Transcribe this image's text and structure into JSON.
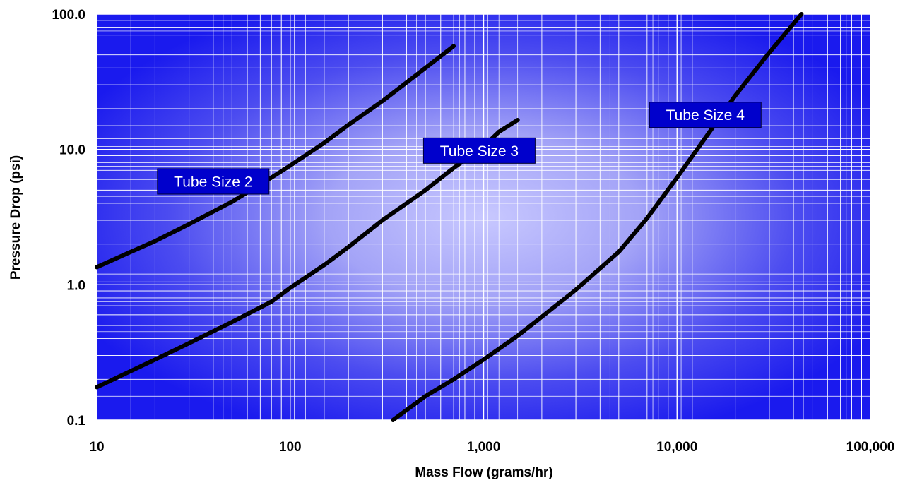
{
  "chart_data": {
    "type": "line",
    "xlabel": "Mass Flow (grams/hr)",
    "ylabel": "Pressure Drop (psi)",
    "x_scale": "log",
    "y_scale": "log",
    "xlim": [
      10,
      100000
    ],
    "ylim": [
      0.1,
      100
    ],
    "x_ticks": [
      {
        "value": 10,
        "label": "10"
      },
      {
        "value": 100,
        "label": "100"
      },
      {
        "value": 1000,
        "label": "1,000"
      },
      {
        "value": 10000,
        "label": "10,000"
      },
      {
        "value": 100000,
        "label": "100,000"
      }
    ],
    "y_ticks": [
      {
        "value": 0.1,
        "label": "0.1"
      },
      {
        "value": 1,
        "label": "1.0"
      },
      {
        "value": 10,
        "label": "10.0"
      },
      {
        "value": 100,
        "label": "100.0"
      }
    ],
    "grid": true,
    "colors": {
      "plot_center": "#c8c8ff",
      "plot_edge": "#1a1aee",
      "grid": "#ffffff",
      "series": "#000000",
      "label_bg": "#0000cc",
      "label_text": "#ffffff"
    },
    "series": [
      {
        "name": "Tube Size 2",
        "x": [
          10,
          15,
          20,
          30,
          50,
          80,
          100,
          150,
          200,
          300,
          500,
          700
        ],
        "y": [
          1.35,
          1.75,
          2.1,
          2.8,
          4.1,
          6.2,
          7.6,
          11.2,
          15.2,
          22.8,
          40,
          58
        ],
        "label_at": [
          40,
          5.8
        ]
      },
      {
        "name": "Tube Size 3",
        "x": [
          10,
          20,
          30,
          50,
          80,
          100,
          150,
          200,
          300,
          500,
          700,
          1000,
          1200,
          1500
        ],
        "y": [
          0.175,
          0.28,
          0.37,
          0.53,
          0.75,
          0.95,
          1.4,
          1.9,
          3.0,
          5.0,
          7.3,
          10.5,
          13.5,
          16.5
        ],
        "label_at": [
          950,
          9.8
        ]
      },
      {
        "name": "Tube Size 4",
        "x": [
          340,
          500,
          700,
          1000,
          1500,
          2000,
          3000,
          5000,
          7000,
          10000,
          15000,
          20000,
          30000,
          44000
        ],
        "y": [
          0.1,
          0.15,
          0.2,
          0.28,
          0.42,
          0.58,
          0.92,
          1.75,
          3.1,
          6.2,
          14,
          25,
          52,
          100
        ],
        "label_at": [
          14000,
          18
        ]
      }
    ]
  }
}
